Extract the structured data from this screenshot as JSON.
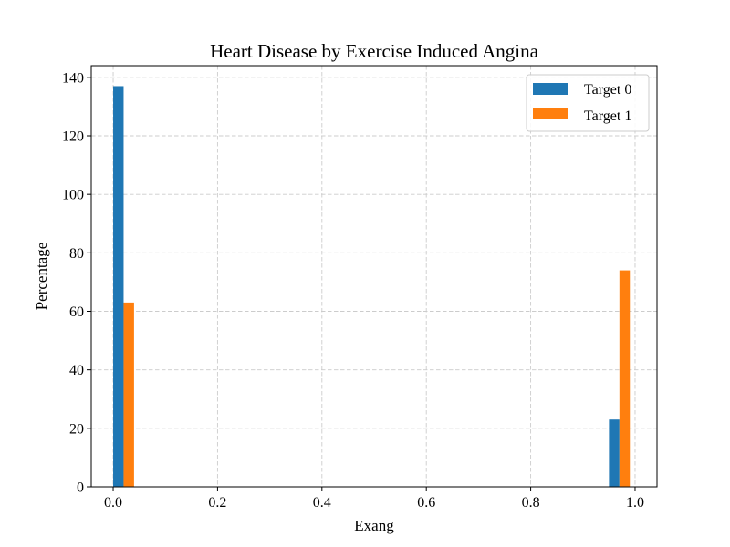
{
  "chart_data": {
    "type": "bar",
    "title": "Heart Disease by Exercise Induced Angina",
    "xlabel": "Exang",
    "ylabel": "Percentage",
    "xlim": [
      -0.042,
      1.042
    ],
    "ylim": [
      0,
      144
    ],
    "xticks": [
      0.0,
      0.2,
      0.4,
      0.6,
      0.8,
      1.0
    ],
    "xtick_labels": [
      "0.0",
      "0.2",
      "0.4",
      "0.6",
      "0.8",
      "1.0"
    ],
    "yticks": [
      0,
      20,
      40,
      60,
      80,
      100,
      120,
      140
    ],
    "ytick_labels": [
      "0",
      "20",
      "40",
      "60",
      "80",
      "100",
      "120",
      "140"
    ],
    "grid": true,
    "legend_position": "top-right",
    "bar_width": 0.02,
    "series": [
      {
        "name": "Target 0",
        "color": "#1f77b4",
        "x": [
          0.01,
          0.96
        ],
        "values": [
          137,
          23
        ]
      },
      {
        "name": "Target 1",
        "color": "#ff7f0e",
        "x": [
          0.03,
          0.98
        ],
        "values": [
          63,
          74
        ]
      }
    ]
  }
}
